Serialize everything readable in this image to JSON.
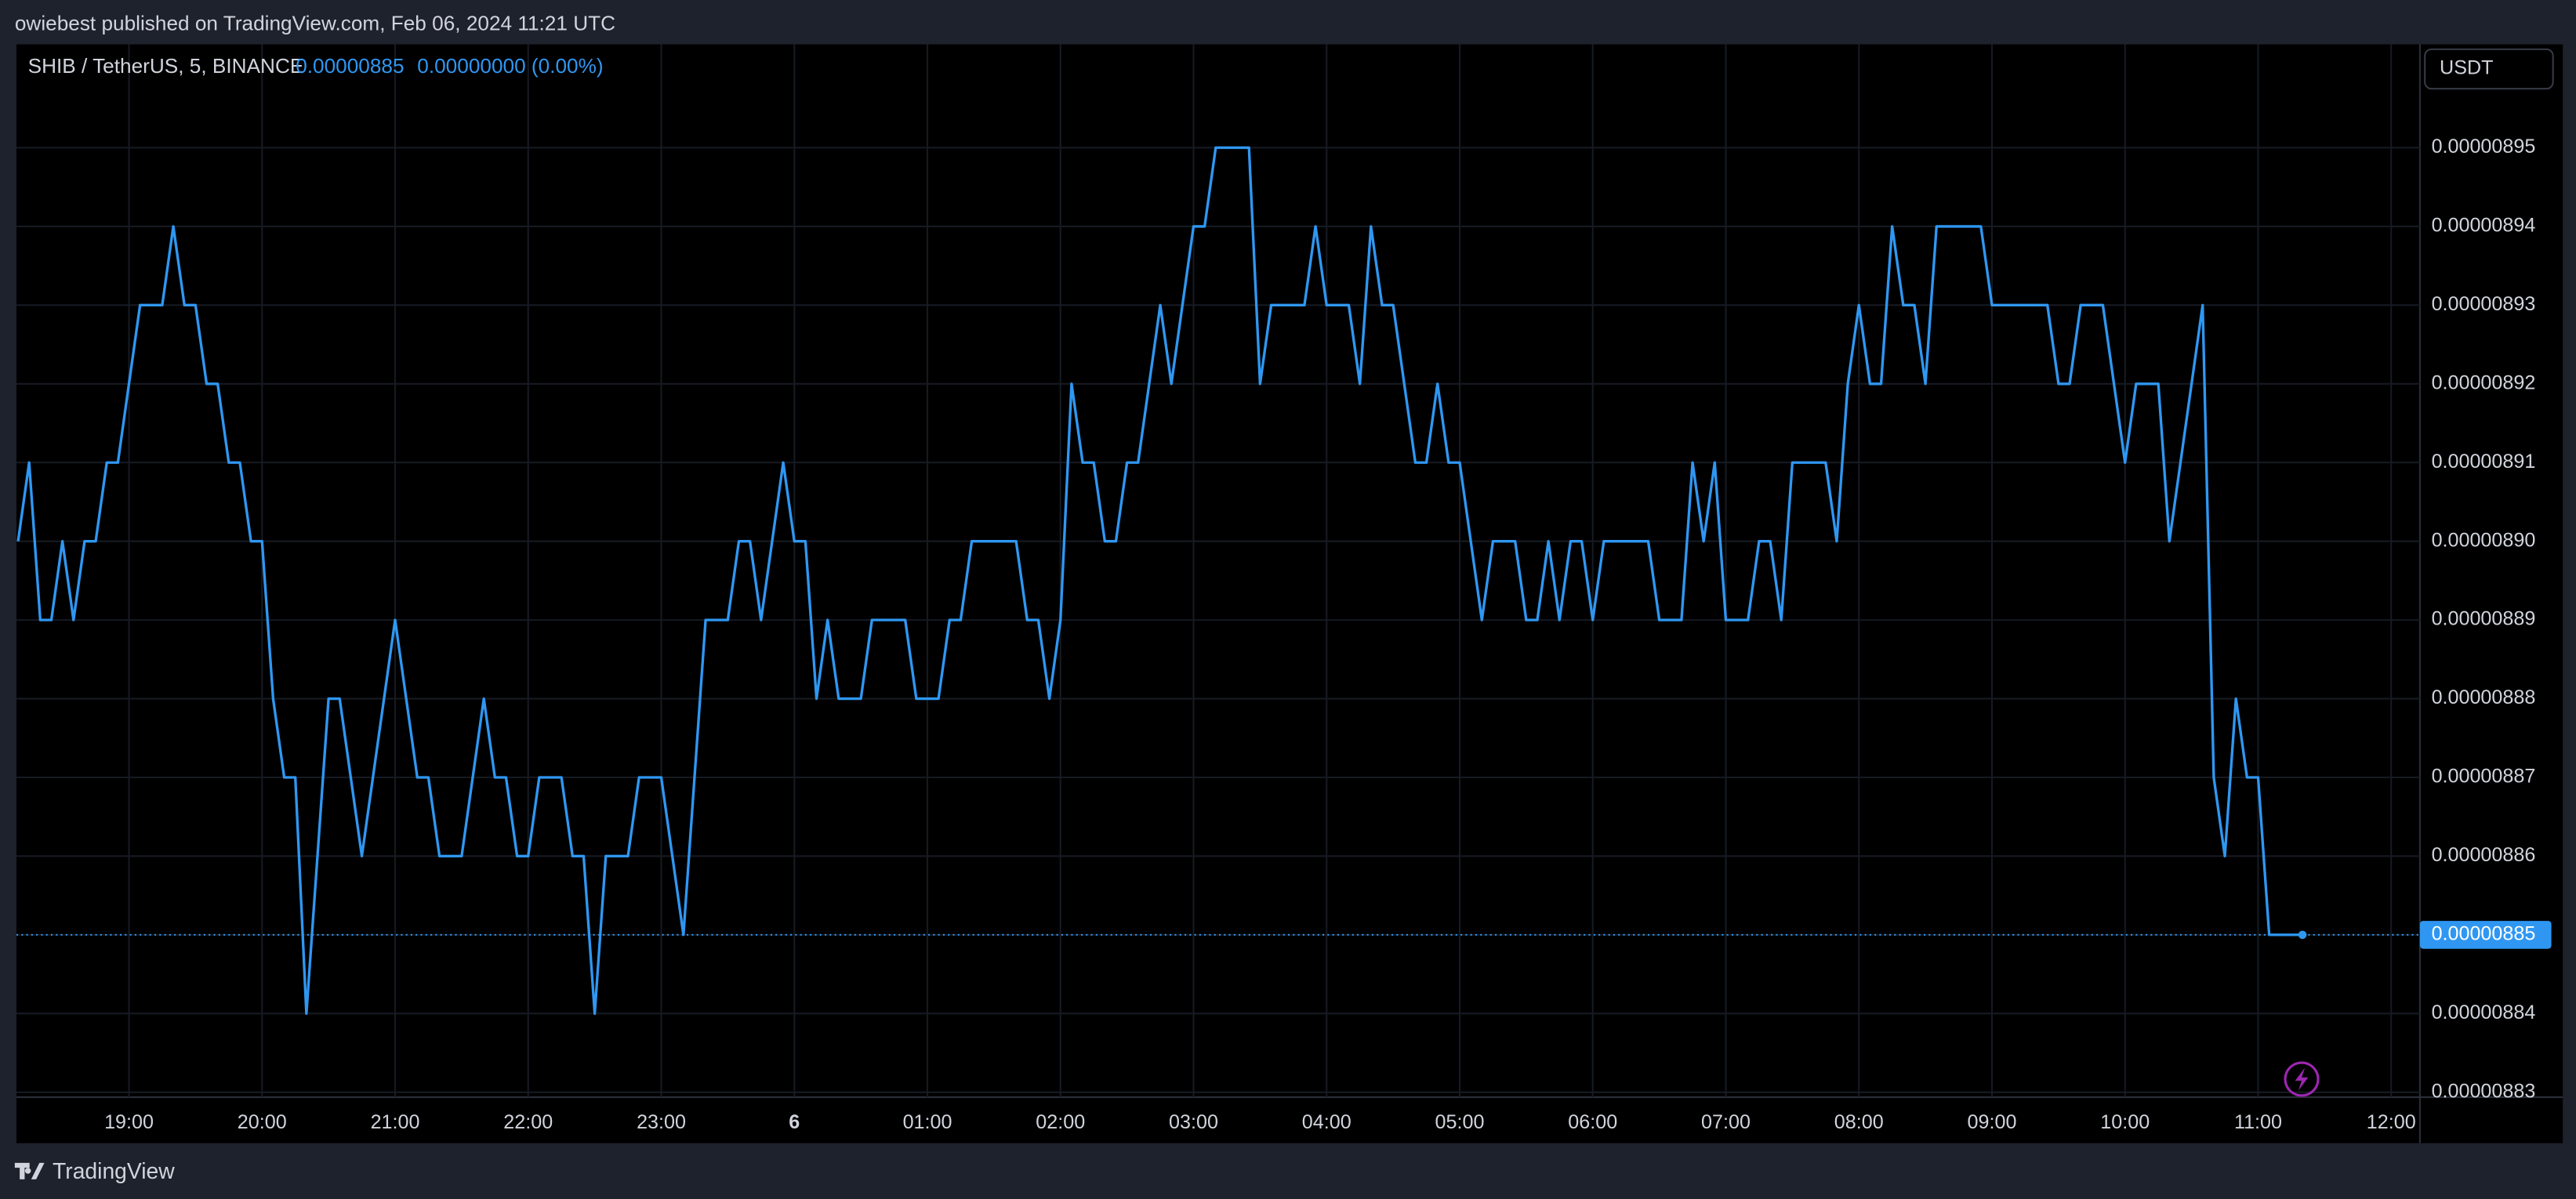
{
  "published": "owiebest published on TradingView.com, Feb 06, 2024 11:21 UTC",
  "footer": "TradingView",
  "chart_data": {
    "type": "line",
    "title": "SHIB / TetherUS, 5, BINANCE",
    "change": "0.00000000 (0.00%)",
    "currency": "USDT",
    "color": "#2f97f2",
    "grid": true,
    "x": [
      "18:10",
      "18:15",
      "18:20",
      "18:25",
      "18:30",
      "18:35",
      "18:40",
      "18:45",
      "18:50",
      "18:55",
      "19:00",
      "19:05",
      "19:10",
      "19:15",
      "19:20",
      "19:25",
      "19:30",
      "19:35",
      "19:40",
      "19:45",
      "19:50",
      "19:55",
      "20:00",
      "20:05",
      "20:10",
      "20:15",
      "20:20",
      "20:25",
      "20:30",
      "20:35",
      "20:40",
      "20:45",
      "20:50",
      "20:55",
      "21:00",
      "21:05",
      "21:10",
      "21:15",
      "21:20",
      "21:25",
      "21:30",
      "21:35",
      "21:40",
      "21:45",
      "21:50",
      "21:55",
      "22:00",
      "22:05",
      "22:10",
      "22:15",
      "22:20",
      "22:25",
      "22:30",
      "22:35",
      "22:40",
      "22:45",
      "22:50",
      "22:55",
      "23:00",
      "23:05",
      "23:10",
      "23:15",
      "23:20",
      "23:25",
      "23:30",
      "23:35",
      "23:40",
      "23:45",
      "23:50",
      "23:55",
      "00:00",
      "00:05",
      "00:10",
      "00:15",
      "00:20",
      "00:25",
      "00:30",
      "00:35",
      "00:40",
      "00:45",
      "00:50",
      "00:55",
      "01:00",
      "01:05",
      "01:10",
      "01:15",
      "01:20",
      "01:25",
      "01:30",
      "01:35",
      "01:40",
      "01:45",
      "01:50",
      "01:55",
      "02:00",
      "02:05",
      "02:10",
      "02:15",
      "02:20",
      "02:25",
      "02:30",
      "02:35",
      "02:40",
      "02:45",
      "02:50",
      "02:55",
      "03:00",
      "03:05",
      "03:10",
      "03:15",
      "03:20",
      "03:25",
      "03:30",
      "03:35",
      "03:40",
      "03:45",
      "03:50",
      "03:55",
      "04:00",
      "04:05",
      "04:10",
      "04:15",
      "04:20",
      "04:25",
      "04:30",
      "04:35",
      "04:40",
      "04:45",
      "04:50",
      "04:55",
      "05:00",
      "05:05",
      "05:10",
      "05:15",
      "05:20",
      "05:25",
      "05:30",
      "05:35",
      "05:40",
      "05:45",
      "05:50",
      "05:55",
      "06:00",
      "06:05",
      "06:10",
      "06:15",
      "06:20",
      "06:25",
      "06:30",
      "06:35",
      "06:40",
      "06:45",
      "06:50",
      "06:55",
      "07:00",
      "07:05",
      "07:10",
      "07:15",
      "07:20",
      "07:25",
      "07:30",
      "07:35",
      "07:40",
      "07:45",
      "07:50",
      "07:55",
      "08:00",
      "08:05",
      "08:10",
      "08:15",
      "08:20",
      "08:25",
      "08:30",
      "08:35",
      "08:40",
      "08:45",
      "08:50",
      "08:55",
      "09:00",
      "09:05",
      "09:10",
      "09:15",
      "09:20",
      "09:25",
      "09:30",
      "09:35",
      "09:40",
      "09:45",
      "09:50",
      "09:55",
      "10:00",
      "10:05",
      "10:10",
      "10:15",
      "10:20",
      "10:25",
      "10:30",
      "10:35",
      "10:40",
      "10:45",
      "10:50",
      "10:55",
      "11:00",
      "11:05",
      "11:10",
      "11:15",
      "11:20"
    ],
    "values": [
      8.9e-06,
      8.91e-06,
      8.89e-06,
      8.89e-06,
      8.9e-06,
      8.89e-06,
      8.9e-06,
      8.9e-06,
      8.91e-06,
      8.91e-06,
      8.92e-06,
      8.93e-06,
      8.93e-06,
      8.93e-06,
      8.94e-06,
      8.93e-06,
      8.93e-06,
      8.92e-06,
      8.92e-06,
      8.91e-06,
      8.91e-06,
      8.9e-06,
      8.9e-06,
      8.88e-06,
      8.87e-06,
      8.87e-06,
      8.84e-06,
      8.86e-06,
      8.88e-06,
      8.88e-06,
      8.87e-06,
      8.86e-06,
      8.87e-06,
      8.88e-06,
      8.89e-06,
      8.88e-06,
      8.87e-06,
      8.87e-06,
      8.86e-06,
      8.86e-06,
      8.86e-06,
      8.87e-06,
      8.88e-06,
      8.87e-06,
      8.87e-06,
      8.86e-06,
      8.86e-06,
      8.87e-06,
      8.87e-06,
      8.87e-06,
      8.86e-06,
      8.86e-06,
      8.84e-06,
      8.86e-06,
      8.86e-06,
      8.86e-06,
      8.87e-06,
      8.87e-06,
      8.87e-06,
      8.86e-06,
      8.85e-06,
      8.87e-06,
      8.89e-06,
      8.89e-06,
      8.89e-06,
      8.9e-06,
      8.9e-06,
      8.89e-06,
      8.9e-06,
      8.91e-06,
      8.9e-06,
      8.9e-06,
      8.88e-06,
      8.89e-06,
      8.88e-06,
      8.88e-06,
      8.88e-06,
      8.89e-06,
      8.89e-06,
      8.89e-06,
      8.89e-06,
      8.88e-06,
      8.88e-06,
      8.88e-06,
      8.89e-06,
      8.89e-06,
      8.9e-06,
      8.9e-06,
      8.9e-06,
      8.9e-06,
      8.9e-06,
      8.89e-06,
      8.89e-06,
      8.88e-06,
      8.89e-06,
      8.92e-06,
      8.91e-06,
      8.91e-06,
      8.9e-06,
      8.9e-06,
      8.91e-06,
      8.91e-06,
      8.92e-06,
      8.93e-06,
      8.92e-06,
      8.93e-06,
      8.94e-06,
      8.94e-06,
      8.95e-06,
      8.95e-06,
      8.95e-06,
      8.95e-06,
      8.92e-06,
      8.93e-06,
      8.93e-06,
      8.93e-06,
      8.93e-06,
      8.94e-06,
      8.93e-06,
      8.93e-06,
      8.93e-06,
      8.92e-06,
      8.94e-06,
      8.93e-06,
      8.93e-06,
      8.92e-06,
      8.91e-06,
      8.91e-06,
      8.92e-06,
      8.91e-06,
      8.91e-06,
      8.9e-06,
      8.89e-06,
      8.9e-06,
      8.9e-06,
      8.9e-06,
      8.89e-06,
      8.89e-06,
      8.9e-06,
      8.89e-06,
      8.9e-06,
      8.9e-06,
      8.89e-06,
      8.9e-06,
      8.9e-06,
      8.9e-06,
      8.9e-06,
      8.9e-06,
      8.89e-06,
      8.89e-06,
      8.89e-06,
      8.91e-06,
      8.9e-06,
      8.91e-06,
      8.89e-06,
      8.89e-06,
      8.89e-06,
      8.9e-06,
      8.9e-06,
      8.89e-06,
      8.91e-06,
      8.91e-06,
      8.91e-06,
      8.91e-06,
      8.9e-06,
      8.92e-06,
      8.93e-06,
      8.92e-06,
      8.92e-06,
      8.94e-06,
      8.93e-06,
      8.93e-06,
      8.92e-06,
      8.94e-06,
      8.94e-06,
      8.94e-06,
      8.94e-06,
      8.94e-06,
      8.93e-06,
      8.93e-06,
      8.93e-06,
      8.93e-06,
      8.93e-06,
      8.93e-06,
      8.92e-06,
      8.92e-06,
      8.93e-06,
      8.93e-06,
      8.93e-06,
      8.92e-06,
      8.91e-06,
      8.92e-06,
      8.92e-06,
      8.92e-06,
      8.9e-06,
      8.91e-06,
      8.92e-06,
      8.93e-06,
      8.87e-06,
      8.86e-06,
      8.88e-06,
      8.87e-06,
      8.87e-06,
      8.85e-06,
      8.85e-06,
      8.85e-06,
      8.85e-06
    ],
    "xlim": [
      "18:10",
      "12:10"
    ],
    "xticks": [
      "19:00",
      "20:00",
      "21:00",
      "22:00",
      "23:00",
      {
        "value": "00:00",
        "label": "6"
      },
      "01:00",
      "02:00",
      "03:00",
      "04:00",
      "05:00",
      "06:00",
      "07:00",
      "08:00",
      "09:00",
      "10:00",
      "11:00",
      "12:00"
    ],
    "ylim": [
      8.83e-06,
      8.96e-06
    ],
    "yticks": [
      {
        "value": 8.83e-06,
        "label": "0.00000883"
      },
      {
        "value": 8.84e-06,
        "label": "0.00000884"
      },
      {
        "value": 8.85e-06,
        "label": "0.00000885"
      },
      {
        "value": 8.86e-06,
        "label": "0.00000886"
      },
      {
        "value": 8.87e-06,
        "label": "0.00000887"
      },
      {
        "value": 8.88e-06,
        "label": "0.00000888"
      },
      {
        "value": 8.89e-06,
        "label": "0.00000889"
      },
      {
        "value": 8.9e-06,
        "label": "0.00000890"
      },
      {
        "value": 8.91e-06,
        "label": "0.00000891"
      },
      {
        "value": 8.92e-06,
        "label": "0.00000892"
      },
      {
        "value": 8.93e-06,
        "label": "0.00000893"
      },
      {
        "value": 8.94e-06,
        "label": "0.00000894"
      },
      {
        "value": 8.95e-06,
        "label": "0.00000895"
      }
    ]
  }
}
